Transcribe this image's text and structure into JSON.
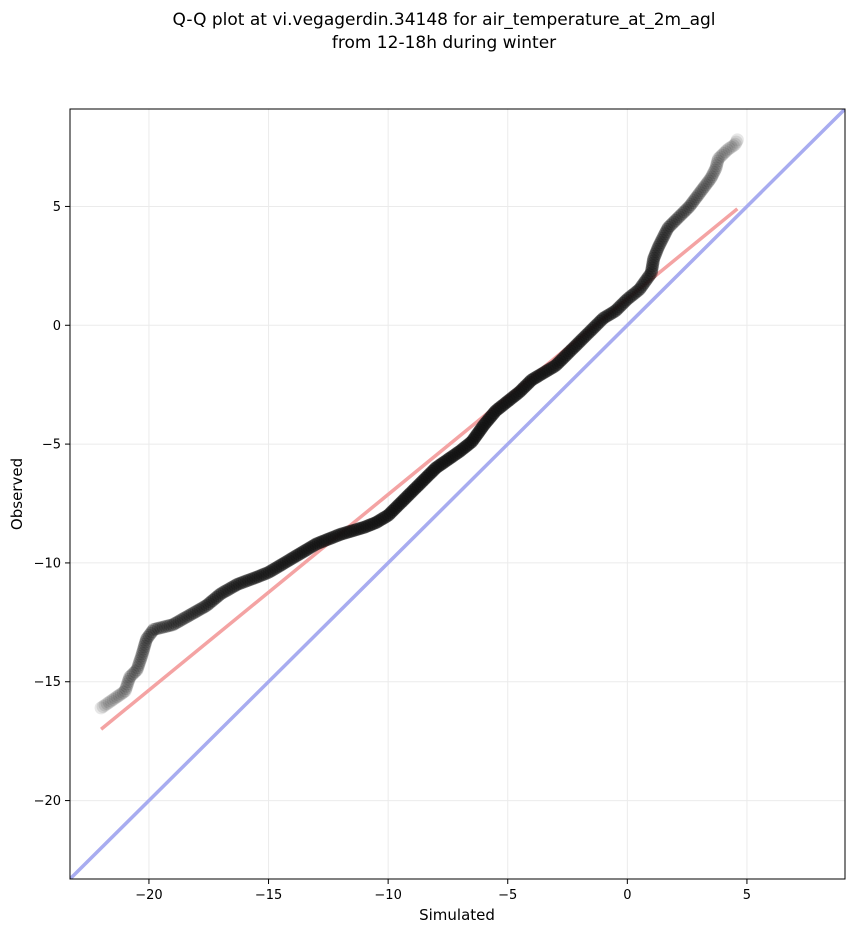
{
  "chart_data": {
    "type": "scatter",
    "title": [
      "Q-Q plot at vi.vegagerdin.34148 for air_temperature_at_2m_agl",
      "from 12-18h during winter"
    ],
    "xlabel": "Simulated",
    "ylabel": "Observed",
    "xlim": [
      -23.3,
      9.1
    ],
    "ylim": [
      -23.3,
      9.1
    ],
    "xticks": [
      -20,
      -15,
      -10,
      -5,
      0,
      5
    ],
    "yticks": [
      -20,
      -15,
      -10,
      -5,
      0,
      5
    ],
    "xtick_labels": [
      "−20",
      "−15",
      "−10",
      "−5",
      "0",
      "5"
    ],
    "ytick_labels": [
      "−20",
      "−15",
      "−10",
      "−5",
      "0",
      "5"
    ],
    "grid": true,
    "colors": {
      "points": "#111111",
      "fit_line": "#f4a3a3",
      "identity_line": "#a8acf0",
      "grid": "#ebebeb",
      "axis": "#000000"
    },
    "quantile_curve": [
      [
        -22.0,
        -16.1
      ],
      [
        -21.0,
        -15.4
      ],
      [
        -20.8,
        -14.8
      ],
      [
        -20.5,
        -14.5
      ],
      [
        -20.3,
        -13.9
      ],
      [
        -20.1,
        -13.2
      ],
      [
        -19.8,
        -12.8
      ],
      [
        -19.0,
        -12.6
      ],
      [
        -18.3,
        -12.2
      ],
      [
        -17.6,
        -11.8
      ],
      [
        -17.0,
        -11.3
      ],
      [
        -16.3,
        -10.9
      ],
      [
        -15.5,
        -10.6
      ],
      [
        -15.0,
        -10.4
      ],
      [
        -14.5,
        -10.1
      ],
      [
        -14.0,
        -9.8
      ],
      [
        -13.5,
        -9.5
      ],
      [
        -13.0,
        -9.2
      ],
      [
        -12.0,
        -8.8
      ],
      [
        -11.0,
        -8.5
      ],
      [
        -10.5,
        -8.3
      ],
      [
        -10.0,
        -8.0
      ],
      [
        -9.5,
        -7.5
      ],
      [
        -9.0,
        -7.0
      ],
      [
        -8.5,
        -6.5
      ],
      [
        -8.0,
        -6.0
      ],
      [
        -7.0,
        -5.3
      ],
      [
        -6.5,
        -4.9
      ],
      [
        -6.0,
        -4.2
      ],
      [
        -5.5,
        -3.6
      ],
      [
        -5.0,
        -3.2
      ],
      [
        -4.5,
        -2.8
      ],
      [
        -4.0,
        -2.3
      ],
      [
        -3.5,
        -2.0
      ],
      [
        -3.0,
        -1.7
      ],
      [
        -2.5,
        -1.2
      ],
      [
        -2.0,
        -0.7
      ],
      [
        -1.5,
        -0.2
      ],
      [
        -1.0,
        0.3
      ],
      [
        -0.5,
        0.6
      ],
      [
        0.0,
        1.1
      ],
      [
        0.5,
        1.5
      ],
      [
        1.0,
        2.2
      ],
      [
        1.1,
        2.8
      ],
      [
        1.3,
        3.3
      ],
      [
        1.5,
        3.7
      ],
      [
        1.7,
        4.1
      ],
      [
        2.0,
        4.4
      ],
      [
        2.4,
        4.8
      ],
      [
        2.6,
        5.0
      ],
      [
        2.9,
        5.4
      ],
      [
        3.2,
        5.8
      ],
      [
        3.5,
        6.2
      ],
      [
        3.7,
        6.6
      ],
      [
        3.8,
        7.0
      ],
      [
        4.2,
        7.4
      ],
      [
        4.5,
        7.6
      ],
      [
        4.6,
        7.8
      ]
    ],
    "fit_line": [
      [
        -22.0,
        -17.0
      ],
      [
        4.6,
        4.9
      ]
    ],
    "identity_line": [
      [
        -23.3,
        -23.3
      ],
      [
        9.1,
        9.1
      ]
    ]
  }
}
